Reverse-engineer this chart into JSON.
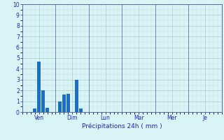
{
  "bar_positions": [
    3,
    4,
    5,
    6,
    9,
    10,
    11,
    13,
    14,
    15
  ],
  "bar_heights": [
    0.3,
    4.7,
    2.0,
    0.4,
    1.0,
    1.6,
    1.7,
    3.0,
    0.3,
    0.0
  ],
  "bar_color": "#1a6fce",
  "bar_width": 0.85,
  "xlim": [
    0,
    48
  ],
  "day_boundaries": [
    0,
    8,
    16,
    24,
    32,
    40,
    48
  ],
  "day_tick_positions": [
    4,
    12,
    20,
    28,
    36,
    44
  ],
  "day_labels": [
    "Ven",
    "Dim",
    "Lun",
    "Mar",
    "Mer",
    "Je"
  ],
  "ylim": [
    0,
    10
  ],
  "yticks": [
    0,
    1,
    2,
    3,
    4,
    5,
    6,
    7,
    8,
    9,
    10
  ],
  "xlabel": "Précipitations 24h ( mm )",
  "xlabel_color": "#2222cc",
  "tick_label_color": "#2222cc",
  "bg_color": "#d8f4f4",
  "grid_major_color": "#aacccc",
  "grid_minor_color": "#c4e4e4",
  "spine_color": "#5566aa",
  "day_line_color": "#6677aa"
}
